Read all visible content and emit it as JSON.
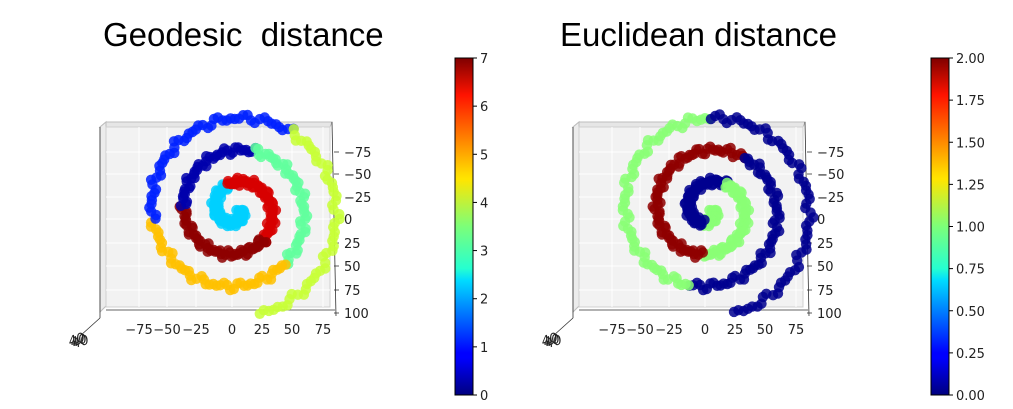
{
  "chart_data": [
    {
      "type": "scatter",
      "title": "Geodesic  distance",
      "x_ticks": [
        "−75",
        "−50",
        "−25",
        "0",
        "25",
        "50",
        "75"
      ],
      "y_ticks": [
        "−75",
        "−50",
        "−25",
        "0",
        "25",
        "50",
        "75",
        "100"
      ],
      "z_tick_overlap": "40",
      "xlim": [
        -100,
        85
      ],
      "ylim": [
        -100,
        100
      ],
      "grid": true,
      "colormap": "jet",
      "colorbar": {
        "min": 0,
        "max": 7,
        "ticks": [
          "0",
          "1",
          "2",
          "3",
          "4",
          "5",
          "6",
          "7"
        ]
      },
      "series_description": "Swiss-roll spiral seen from above, coloured by geodesic distance band",
      "segments": [
        {
          "theta_start": 0.0,
          "theta_end": 4.4,
          "value": 2.3
        },
        {
          "theta_start": 4.4,
          "theta_end": 7.1,
          "value": 6.4
        },
        {
          "theta_start": 7.1,
          "theta_end": 9.5,
          "value": 6.9
        },
        {
          "theta_start": 9.5,
          "theta_end": 11.3,
          "value": 0.3
        },
        {
          "theta_start": 11.3,
          "theta_end": 13.4,
          "value": 3.3
        },
        {
          "theta_start": 13.4,
          "theta_end": 15.6,
          "value": 4.8
        },
        {
          "theta_start": 15.6,
          "theta_end": 17.9,
          "value": 1.1
        },
        {
          "theta_start": 17.9,
          "theta_end": 20.2,
          "value": 4.0
        }
      ]
    },
    {
      "type": "scatter",
      "title": "Euclidean distance",
      "x_ticks": [
        "−75",
        "−50",
        "−25",
        "0",
        "25",
        "50",
        "75"
      ],
      "y_ticks": [
        "−75",
        "−50",
        "−25",
        "0",
        "25",
        "50",
        "75",
        "100"
      ],
      "z_tick_overlap": "40",
      "xlim": [
        -100,
        85
      ],
      "ylim": [
        -100,
        100
      ],
      "grid": true,
      "colormap": "jet",
      "colorbar": {
        "min": 0,
        "max": 2,
        "ticks": [
          "0.00",
          "0.25",
          "0.50",
          "0.75",
          "1.00",
          "1.25",
          "1.50",
          "1.75",
          "2.00"
        ]
      },
      "series_description": "Swiss-roll spiral seen from above, coloured by Euclidean distance (two classes)",
      "segments": [
        {
          "theta_start": 0.0,
          "theta_end": 2.0,
          "value": 1.02
        },
        {
          "theta_start": 2.0,
          "theta_end": 5.3,
          "value": 0.03
        },
        {
          "theta_start": 5.3,
          "theta_end": 8.0,
          "value": 1.02
        },
        {
          "theta_start": 8.0,
          "theta_end": 11.6,
          "value": 1.97
        },
        {
          "theta_start": 11.6,
          "theta_end": 14.4,
          "value": 0.03
        },
        {
          "theta_start": 14.4,
          "theta_end": 17.3,
          "value": 1.02
        },
        {
          "theta_start": 17.3,
          "theta_end": 20.2,
          "value": 0.03
        }
      ]
    }
  ]
}
